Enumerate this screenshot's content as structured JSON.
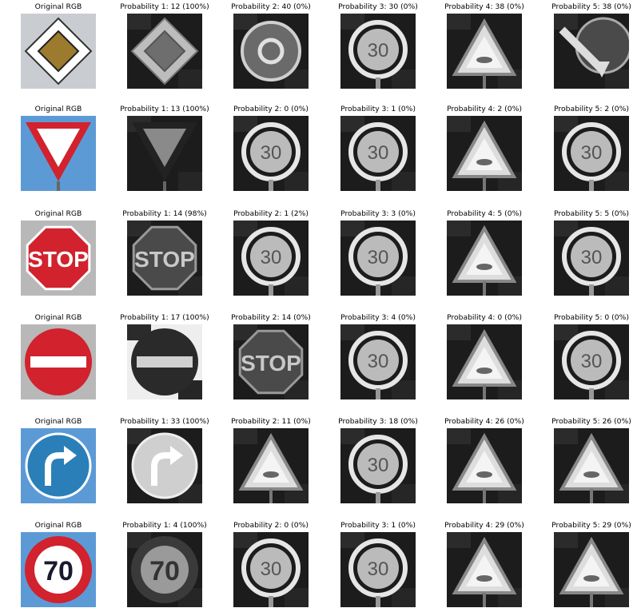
{
  "rows": [
    {
      "original": {
        "label": "Original RGB",
        "sign": "priority-road-sign"
      },
      "predictions": [
        {
          "label": "Probability 1: 12 (100%)",
          "sign": "priority-road-sign"
        },
        {
          "label": "Probability 2: 40 (0%)",
          "sign": "roundabout-sign"
        },
        {
          "label": "Probability 3: 30 (0%)",
          "sign": "round-limit-sign"
        },
        {
          "label": "Probability 4: 38 (0%)",
          "sign": "warning-triangle-sign"
        },
        {
          "label": "Probability 5: 38 (0%)",
          "sign": "keep-right-sign"
        }
      ]
    },
    {
      "original": {
        "label": "Original RGB",
        "sign": "yield-sign"
      },
      "predictions": [
        {
          "label": "Probability 1: 13 (100%)",
          "sign": "yield-sign"
        },
        {
          "label": "Probability 2: 0 (0%)",
          "sign": "round-limit-sign"
        },
        {
          "label": "Probability 3: 1 (0%)",
          "sign": "round-limit-sign"
        },
        {
          "label": "Probability 4: 2 (0%)",
          "sign": "warning-triangle-sign"
        },
        {
          "label": "Probability 5: 2 (0%)",
          "sign": "round-limit-sign"
        }
      ]
    },
    {
      "original": {
        "label": "Original RGB",
        "sign": "stop-sign",
        "text": "STOP"
      },
      "predictions": [
        {
          "label": "Probability 1: 14 (98%)",
          "sign": "stop-sign"
        },
        {
          "label": "Probability 2: 1 (2%)",
          "sign": "round-limit-sign"
        },
        {
          "label": "Probability 3: 3 (0%)",
          "sign": "round-limit-sign"
        },
        {
          "label": "Probability 4: 5 (0%)",
          "sign": "warning-triangle-sign"
        },
        {
          "label": "Probability 5: 5 (0%)",
          "sign": "round-limit-sign"
        }
      ]
    },
    {
      "original": {
        "label": "Original RGB",
        "sign": "no-entry-sign"
      },
      "predictions": [
        {
          "label": "Probability 1: 17 (100%)",
          "sign": "no-entry-sign"
        },
        {
          "label": "Probability 2: 14 (0%)",
          "sign": "stop-sign"
        },
        {
          "label": "Probability 3: 4 (0%)",
          "sign": "round-limit-sign"
        },
        {
          "label": "Probability 4: 0 (0%)",
          "sign": "warning-triangle-sign"
        },
        {
          "label": "Probability 5: 0 (0%)",
          "sign": "round-limit-sign"
        }
      ]
    },
    {
      "original": {
        "label": "Original RGB",
        "sign": "turn-right-ahead-sign"
      },
      "predictions": [
        {
          "label": "Probability 1: 33 (100%)",
          "sign": "turn-right-ahead-sign"
        },
        {
          "label": "Probability 2: 11 (0%)",
          "sign": "warning-triangle-sign"
        },
        {
          "label": "Probability 3: 18 (0%)",
          "sign": "round-limit-sign"
        },
        {
          "label": "Probability 4: 26 (0%)",
          "sign": "warning-triangle-sign"
        },
        {
          "label": "Probability 5: 26 (0%)",
          "sign": "warning-triangle-sign"
        }
      ]
    },
    {
      "original": {
        "label": "Original RGB",
        "sign": "speed-limit-sign",
        "text": "70"
      },
      "predictions": [
        {
          "label": "Probability 1: 4 (100%)",
          "sign": "speed-limit-sign"
        },
        {
          "label": "Probability 2: 0 (0%)",
          "sign": "round-limit-sign"
        },
        {
          "label": "Probability 3: 1 (0%)",
          "sign": "round-limit-sign"
        },
        {
          "label": "Probability 4: 29 (0%)",
          "sign": "warning-triangle-sign"
        },
        {
          "label": "Probability 5: 29 (0%)",
          "sign": "warning-triangle-sign"
        }
      ]
    }
  ],
  "colors": {
    "sign_red": "#d1222e",
    "sign_blue": "#2a7fb8",
    "sky_blue": "#5c9ad6",
    "priority_yellow": "#9c7a2e",
    "gray_dark": "#1c1c1c",
    "gray_light": "#dcdcdc"
  }
}
